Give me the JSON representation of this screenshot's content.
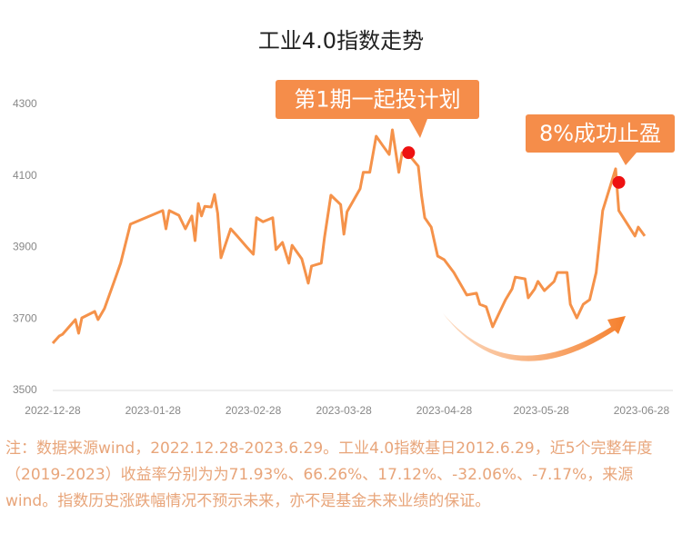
{
  "chart_data": {
    "type": "line",
    "title": "工业4.0指数走势",
    "x": [
      "2022-12-28",
      "2022-12-30",
      "2022-12-31",
      "2023-01-04",
      "2023-01-05",
      "2023-01-06",
      "2023-01-10",
      "2023-01-11",
      "2023-01-13",
      "2023-01-16",
      "2023-01-18",
      "2023-01-21",
      "2023-01-31",
      "2023-02-01",
      "2023-02-02",
      "2023-02-05",
      "2023-02-07",
      "2023-02-09",
      "2023-02-10",
      "2023-02-11",
      "2023-02-12",
      "2023-02-13",
      "2023-02-15",
      "2023-02-16",
      "2023-02-17",
      "2023-02-18",
      "2023-02-21",
      "2023-02-23",
      "2023-02-26",
      "2023-02-28",
      "2023-03-01",
      "2023-03-03",
      "2023-03-06",
      "2023-03-07",
      "2023-03-09",
      "2023-03-11",
      "2023-03-12",
      "2023-03-15",
      "2023-03-17",
      "2023-03-18",
      "2023-03-21",
      "2023-03-22",
      "2023-03-24",
      "2023-03-27",
      "2023-03-28",
      "2023-03-29",
      "2023-04-02",
      "2023-04-03",
      "2023-04-05",
      "2023-04-07",
      "2023-04-09",
      "2023-04-11",
      "2023-04-12",
      "2023-04-14",
      "2023-04-15",
      "2023-04-17",
      "2023-04-20",
      "2023-04-21",
      "2023-04-22",
      "2023-04-24",
      "2023-04-26",
      "2023-04-28",
      "2023-05-01",
      "2023-05-05",
      "2023-05-08",
      "2023-05-09",
      "2023-05-11",
      "2023-05-13",
      "2023-05-15",
      "2023-05-17",
      "2023-05-19",
      "2023-05-20",
      "2023-05-23",
      "2023-05-24",
      "2023-05-26",
      "2023-05-27",
      "2023-05-29",
      "2023-06-01",
      "2023-06-02",
      "2023-06-05",
      "2023-06-06",
      "2023-06-08",
      "2023-06-10",
      "2023-06-12",
      "2023-06-14",
      "2023-06-16",
      "2023-06-20",
      "2023-06-21",
      "2023-06-26",
      "2023-06-27",
      "2023-06-29"
    ],
    "series": [
      {
        "name": "工业4.0指数",
        "color": "#f5924a",
        "values": [
          3632,
          3652,
          3657,
          3698,
          3660,
          3703,
          3721,
          3698,
          3729,
          3805,
          3856,
          3965,
          4003,
          3952,
          4003,
          3990,
          3952,
          3988,
          3919,
          4023,
          3988,
          4015,
          4013,
          4048,
          3995,
          3871,
          3952,
          3932,
          3901,
          3881,
          3983,
          3972,
          3983,
          3894,
          3914,
          3856,
          3906,
          3868,
          3800,
          3848,
          3856,
          3927,
          4046,
          4020,
          3937,
          4000,
          4064,
          4110,
          4110,
          4211,
          4185,
          4160,
          4229,
          4110,
          4165,
          4160,
          4127,
          4046,
          3983,
          3957,
          3876,
          3866,
          3830,
          3767,
          3772,
          3741,
          3734,
          3678,
          3716,
          3754,
          3784,
          3817,
          3812,
          3759,
          3784,
          3805,
          3779,
          3805,
          3830,
          3830,
          3741,
          3703,
          3741,
          3754,
          3830,
          4003,
          4120,
          4003,
          3932,
          3957,
          3932
        ]
      }
    ],
    "xlim": [
      "2022-12-28",
      "2023-06-29"
    ],
    "xticks": [
      "2022-12-28",
      "2023-01-28",
      "2023-02-28",
      "2023-03-28",
      "2023-04-28",
      "2023-05-28",
      "2023-06-28"
    ],
    "ylim": [
      3500,
      4300
    ],
    "yticks": [
      3500,
      3700,
      3900,
      4100,
      4300
    ],
    "grid": false,
    "annotations": [
      {
        "text": "第1期一起投计划",
        "x": "2023-04-17",
        "y": 4165
      },
      {
        "text": "8%成功止盈",
        "x": "2023-06-21",
        "y": 4082
      }
    ],
    "note": "注：数据来源wind，2022.12.28-2023.6.29。工业4.0指数基日2012.6.29，近5个完整年度（2019-2023）收益率分别为为71.93%、66.26%、17.12%、-32.06%、-7.17%，来源wind。指数历史涨跌幅情况不预示未来，亦不是基金未来业绩的保证。"
  }
}
